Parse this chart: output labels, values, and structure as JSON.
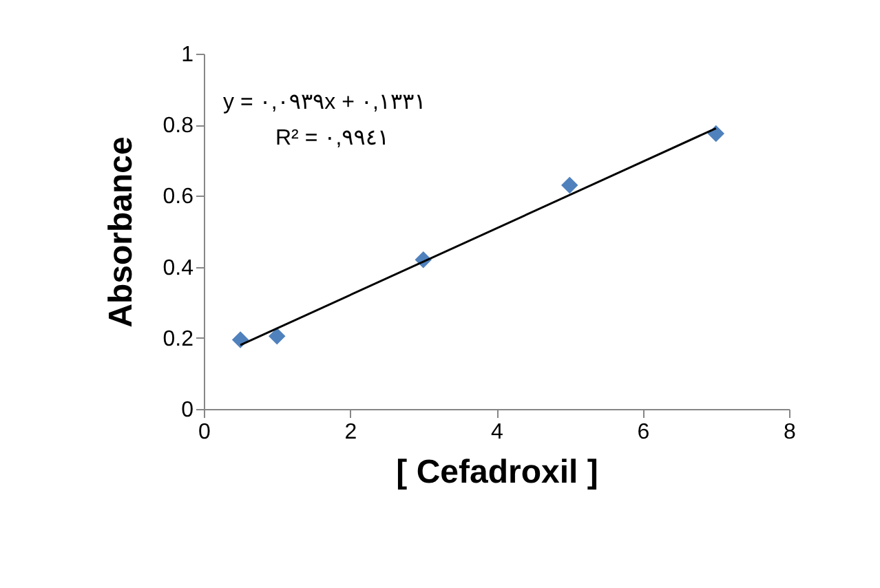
{
  "chart_data": {
    "type": "scatter",
    "xlabel": "[ Cefadroxil ]",
    "ylabel": "Absorbance",
    "annotations": [
      "y = ٠,٠٩٣٩x + ٠,١٣٣١",
      "R² = ٠,٩٩٤١"
    ],
    "series": [
      {
        "color": "#4f81bd",
        "marker": "diamond",
        "x": [
          0.5,
          1,
          3,
          5,
          7
        ],
        "values": [
          0.195,
          0.205,
          0.42,
          0.63,
          0.775
        ]
      },
      {
        "type": "line",
        "color": "#000000",
        "marker": "none",
        "x": [
          0.5,
          7
        ],
        "values": [
          0.18,
          0.79
        ]
      }
    ],
    "xlim": [
      0,
      8
    ],
    "xticks": [
      0,
      2,
      4,
      6,
      8
    ],
    "ylim": [
      0,
      1
    ],
    "yticks": [
      0,
      0.2,
      0.4,
      0.6,
      0.8,
      1
    ],
    "grid": false
  }
}
